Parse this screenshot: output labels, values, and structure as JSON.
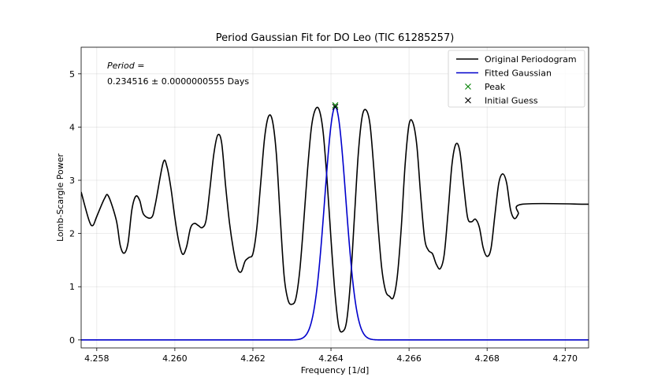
{
  "chart_data": {
    "type": "line",
    "title": "Period Gaussian Fit for DO Leo (TIC 61285257)",
    "xlabel": "Frequency [1/d]",
    "ylabel": "Lomb-Scargle Power",
    "xlim": [
      4.2576,
      4.2706
    ],
    "ylim": [
      -0.15,
      5.5
    ],
    "xticks": [
      4.258,
      4.26,
      4.262,
      4.264,
      4.266,
      4.268,
      4.27
    ],
    "xtick_labels": [
      "4.258",
      "4.260",
      "4.262",
      "4.264",
      "4.266",
      "4.268",
      "4.270"
    ],
    "yticks": [
      0,
      1,
      2,
      3,
      4,
      5
    ],
    "ytick_labels": [
      "0",
      "1",
      "2",
      "3",
      "4",
      "5"
    ],
    "grid": true,
    "legend_position": "top-right",
    "annotation": {
      "label": "Period =",
      "value": "0.234516 ± 0.0000000555 Days"
    },
    "series": [
      {
        "name": "Original Periodogram",
        "kind": "line",
        "color": "#000000",
        "points": [
          [
            4.2576,
            2.78
          ],
          [
            4.2578,
            2.25
          ],
          [
            4.2579,
            2.15
          ],
          [
            4.258,
            2.32
          ],
          [
            4.2582,
            2.66
          ],
          [
            4.2583,
            2.7
          ],
          [
            4.2585,
            2.25
          ],
          [
            4.2586,
            1.78
          ],
          [
            4.2587,
            1.63
          ],
          [
            4.2588,
            1.82
          ],
          [
            4.2589,
            2.45
          ],
          [
            4.259,
            2.7
          ],
          [
            4.2591,
            2.62
          ],
          [
            4.2592,
            2.36
          ],
          [
            4.2594,
            2.3
          ],
          [
            4.2595,
            2.55
          ],
          [
            4.2597,
            3.33
          ],
          [
            4.2598,
            3.25
          ],
          [
            4.2599,
            2.85
          ],
          [
            4.26,
            2.3
          ],
          [
            4.2601,
            1.85
          ],
          [
            4.2602,
            1.61
          ],
          [
            4.2603,
            1.75
          ],
          [
            4.2604,
            2.1
          ],
          [
            4.2605,
            2.19
          ],
          [
            4.2606,
            2.15
          ],
          [
            4.2607,
            2.11
          ],
          [
            4.2608,
            2.25
          ],
          [
            4.2609,
            2.85
          ],
          [
            4.261,
            3.5
          ],
          [
            4.2611,
            3.85
          ],
          [
            4.2612,
            3.7
          ],
          [
            4.2613,
            2.9
          ],
          [
            4.2614,
            2.2
          ],
          [
            4.2615,
            1.7
          ],
          [
            4.2616,
            1.35
          ],
          [
            4.2617,
            1.28
          ],
          [
            4.2618,
            1.48
          ],
          [
            4.2619,
            1.55
          ],
          [
            4.262,
            1.62
          ],
          [
            4.2621,
            2.1
          ],
          [
            4.2622,
            2.95
          ],
          [
            4.2623,
            3.8
          ],
          [
            4.2624,
            4.2
          ],
          [
            4.2625,
            4.12
          ],
          [
            4.2626,
            3.5
          ],
          [
            4.2627,
            2.3
          ],
          [
            4.2628,
            1.2
          ],
          [
            4.2629,
            0.75
          ],
          [
            4.263,
            0.67
          ],
          [
            4.2631,
            0.78
          ],
          [
            4.2632,
            1.3
          ],
          [
            4.2633,
            2.2
          ],
          [
            4.2634,
            3.2
          ],
          [
            4.2635,
            4.0
          ],
          [
            4.2636,
            4.33
          ],
          [
            4.2637,
            4.32
          ],
          [
            4.2638,
            3.9
          ],
          [
            4.2639,
            3.0
          ],
          [
            4.264,
            1.9
          ],
          [
            4.2641,
            0.9
          ],
          [
            4.2642,
            0.25
          ],
          [
            4.2643,
            0.16
          ],
          [
            4.2644,
            0.35
          ],
          [
            4.2645,
            1.1
          ],
          [
            4.2646,
            2.3
          ],
          [
            4.2647,
            3.5
          ],
          [
            4.2648,
            4.2
          ],
          [
            4.2649,
            4.32
          ],
          [
            4.265,
            4.05
          ],
          [
            4.2651,
            3.2
          ],
          [
            4.2652,
            2.2
          ],
          [
            4.2653,
            1.35
          ],
          [
            4.2654,
            0.92
          ],
          [
            4.2655,
            0.82
          ],
          [
            4.2656,
            0.8
          ],
          [
            4.2657,
            1.2
          ],
          [
            4.2658,
            2.1
          ],
          [
            4.2659,
            3.3
          ],
          [
            4.266,
            4.05
          ],
          [
            4.2661,
            4.08
          ],
          [
            4.2662,
            3.65
          ],
          [
            4.2663,
            2.7
          ],
          [
            4.2664,
            1.9
          ],
          [
            4.2665,
            1.68
          ],
          [
            4.2666,
            1.62
          ],
          [
            4.2667,
            1.42
          ],
          [
            4.2668,
            1.34
          ],
          [
            4.2669,
            1.6
          ],
          [
            4.267,
            2.4
          ],
          [
            4.2671,
            3.3
          ],
          [
            4.2672,
            3.68
          ],
          [
            4.2673,
            3.55
          ],
          [
            4.2674,
            2.9
          ],
          [
            4.2675,
            2.3
          ],
          [
            4.2676,
            2.22
          ],
          [
            4.2677,
            2.27
          ],
          [
            4.2678,
            2.12
          ],
          [
            4.2679,
            1.73
          ],
          [
            4.268,
            1.57
          ],
          [
            4.2681,
            1.72
          ],
          [
            4.2682,
            2.35
          ],
          [
            4.2683,
            2.95
          ],
          [
            4.2684,
            3.12
          ],
          [
            4.2685,
            2.95
          ],
          [
            4.2686,
            2.45
          ],
          [
            4.2687,
            2.28
          ],
          [
            4.2688,
            2.37
          ],
          [
            4.2689,
            2.55
          ],
          [
            4.2706,
            2.55
          ]
        ]
      },
      {
        "name": "Fitted Gaussian",
        "kind": "gaussian",
        "color": "#0000cc",
        "amplitude": 4.38,
        "center": 4.26411,
        "sigma": 0.00027
      },
      {
        "name": "Peak",
        "kind": "marker",
        "color": "#008000",
        "points": [
          [
            4.26411,
            4.41
          ]
        ]
      },
      {
        "name": "Initial Guess",
        "kind": "marker",
        "color": "#000000",
        "points": [
          [
            4.26411,
            4.38
          ]
        ]
      }
    ]
  }
}
